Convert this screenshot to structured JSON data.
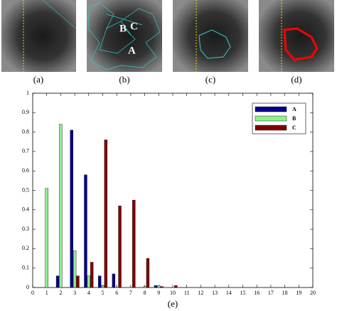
{
  "panels": [
    {
      "caption": "(a)"
    },
    {
      "caption": "(b)",
      "labels": [
        "B",
        "C",
        "A"
      ]
    },
    {
      "caption": "(c)"
    },
    {
      "caption": "(d)"
    }
  ],
  "chart_data": {
    "type": "bar",
    "caption": "(e)",
    "x": [
      1,
      2,
      3,
      4,
      5,
      6,
      7,
      8,
      9,
      10
    ],
    "series": [
      {
        "name": "A",
        "color": "#00008b",
        "values": [
          0,
          0.06,
          0.81,
          0.58,
          0.06,
          0.07,
          0,
          0,
          0.01,
          0
        ]
      },
      {
        "name": "B",
        "color": "#90ee90",
        "values": [
          0.51,
          0.84,
          0.19,
          0.06,
          0.01,
          0,
          0,
          0.005,
          0.01,
          0
        ]
      },
      {
        "name": "C",
        "color": "#800000",
        "values": [
          0,
          0,
          0.06,
          0.13,
          0.76,
          0.42,
          0.45,
          0.15,
          0.005,
          0.01
        ]
      }
    ],
    "xlim": [
      0,
      20
    ],
    "xticks": [
      0,
      1,
      2,
      3,
      4,
      5,
      6,
      7,
      8,
      9,
      10,
      11,
      12,
      13,
      14,
      15,
      16,
      17,
      18,
      19,
      20
    ],
    "ylim": [
      0,
      1
    ],
    "yticks": [
      0,
      0.1,
      0.2,
      0.3,
      0.4,
      0.5,
      0.6,
      0.7,
      0.8,
      0.9,
      1
    ],
    "legend": "upper right",
    "grid": false
  }
}
